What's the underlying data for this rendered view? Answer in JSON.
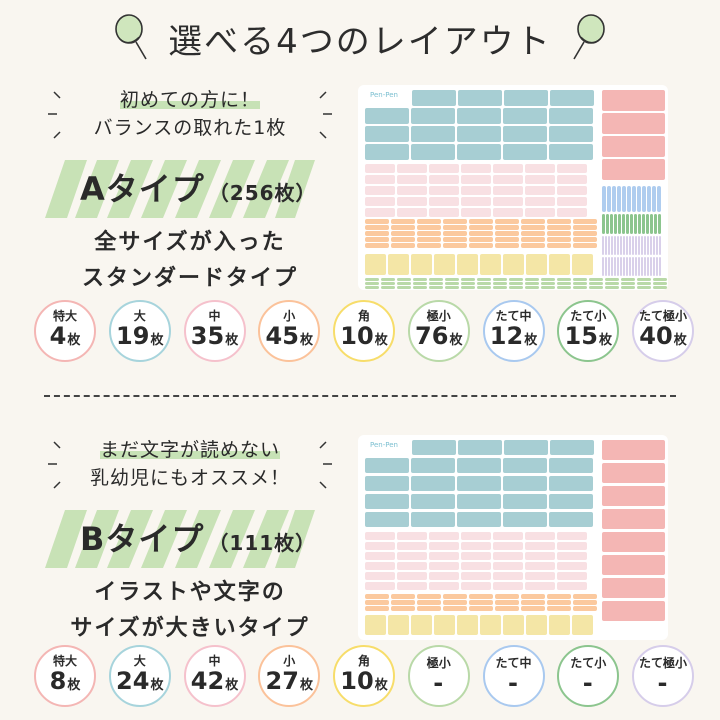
{
  "header": {
    "title": "選べる4つのレイアウト",
    "icons": [
      "magnifier-icon",
      "magnifier-icon"
    ]
  },
  "colors": {
    "background": "#f9f6f0",
    "accent_green": "#c7e2b6",
    "teal": "#a7ced3",
    "rose": "#f4b6b4",
    "light_pink": "#f8e0e3",
    "orange": "#fbc99e",
    "yellow": "#f4e6a6",
    "light_green": "#b9d9a8",
    "blue_stripe": "#afcdef",
    "green_stripe": "#8cc58e",
    "lavender_stripe": "#d9d0ea"
  },
  "type_a": {
    "catch_line1": "初めての方に！",
    "catch_line2": "バランスの取れた1枚",
    "type_name": "Aタイプ",
    "type_count": "（256枚）",
    "desc_line1": "全サイズが入った",
    "desc_line2": "スタンダードタイプ",
    "badges": [
      {
        "name": "特大",
        "qty": "4",
        "unit": "枚",
        "color": "#f4b6b4"
      },
      {
        "name": "大",
        "qty": "19",
        "unit": "枚",
        "color": "#a7d4dc"
      },
      {
        "name": "中",
        "qty": "35",
        "unit": "枚",
        "color": "#f5c1cc"
      },
      {
        "name": "小",
        "qty": "45",
        "unit": "枚",
        "color": "#fbc29a"
      },
      {
        "name": "角",
        "qty": "10",
        "unit": "枚",
        "color": "#f7dd6a"
      },
      {
        "name": "極小",
        "qty": "76",
        "unit": "枚",
        "color": "#b9d9a8"
      },
      {
        "name": "たて中",
        "qty": "12",
        "unit": "枚",
        "color": "#a9c9ef"
      },
      {
        "name": "たて小",
        "qty": "15",
        "unit": "枚",
        "color": "#8cc58e"
      },
      {
        "name": "たて極小",
        "qty": "40",
        "unit": "枚",
        "color": "#d6cdea"
      }
    ]
  },
  "type_b": {
    "catch_line1": "まだ文字が読めない",
    "catch_line2": "乳幼児にもオススメ！",
    "type_name": "Bタイプ",
    "type_count": "（111枚）",
    "desc_line1": "イラストや文字の",
    "desc_line2": "サイズが大きいタイプ",
    "badges": [
      {
        "name": "特大",
        "qty": "8",
        "unit": "枚",
        "color": "#f4b6b4"
      },
      {
        "name": "大",
        "qty": "24",
        "unit": "枚",
        "color": "#a7d4dc"
      },
      {
        "name": "中",
        "qty": "42",
        "unit": "枚",
        "color": "#f5c1cc"
      },
      {
        "name": "小",
        "qty": "27",
        "unit": "枚",
        "color": "#fbc29a"
      },
      {
        "name": "角",
        "qty": "10",
        "unit": "枚",
        "color": "#f7dd6a"
      },
      {
        "name": "極小",
        "qty": "-",
        "unit": "",
        "color": "#b9d9a8"
      },
      {
        "name": "たて中",
        "qty": "-",
        "unit": "",
        "color": "#a9c9ef"
      },
      {
        "name": "たて小",
        "qty": "-",
        "unit": "",
        "color": "#8cc58e"
      },
      {
        "name": "たて極小",
        "qty": "-",
        "unit": "",
        "color": "#d6cdea"
      }
    ]
  },
  "sheet_logo_text": "Pen-Pen"
}
